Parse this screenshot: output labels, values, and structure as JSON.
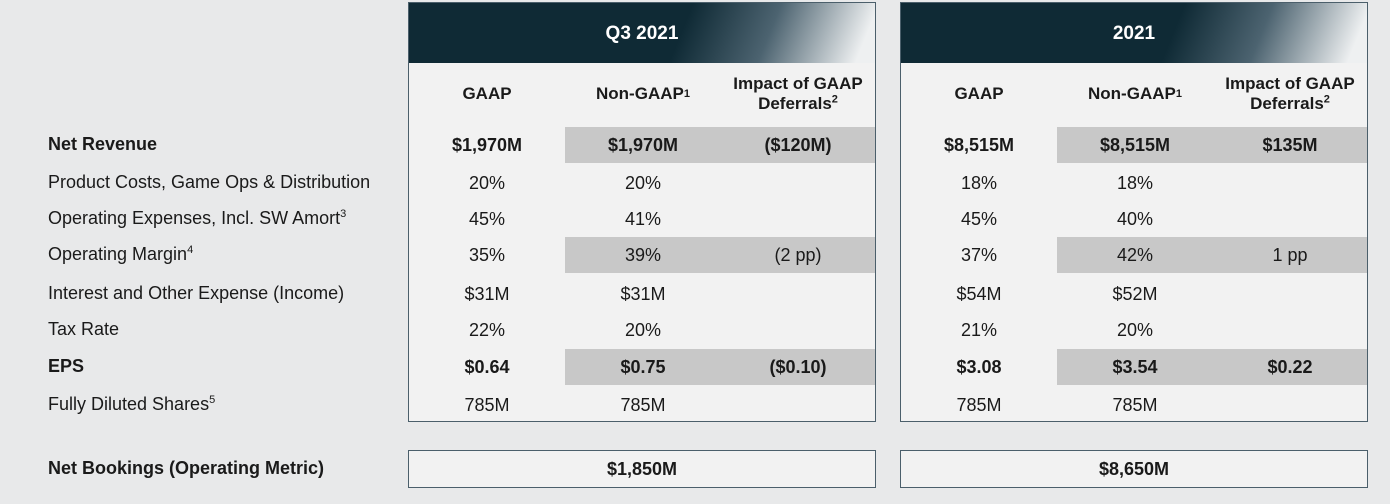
{
  "columns": {
    "gaap": "GAAP",
    "non_gaap": "Non-GAAP",
    "non_gaap_sup": "1",
    "impact_line1": "Impact of GAAP",
    "impact_line2": "Deferrals",
    "impact_sup": "2"
  },
  "rows": [
    {
      "label": "Net Revenue",
      "bold": true,
      "sup": ""
    },
    {
      "label": "Product Costs, Game Ops & Distribution",
      "bold": false,
      "sup": ""
    },
    {
      "label": "Operating Expenses, Incl. SW Amort",
      "bold": false,
      "sup": "3"
    },
    {
      "label": "Operating Margin",
      "bold": false,
      "sup": "4"
    },
    {
      "label": "Interest and Other Expense (Income)",
      "bold": false,
      "sup": ""
    },
    {
      "label": "Tax Rate",
      "bold": false,
      "sup": ""
    },
    {
      "label": "EPS",
      "bold": true,
      "sup": ""
    },
    {
      "label": "Fully Diluted Shares",
      "bold": false,
      "sup": "5"
    }
  ],
  "periods": [
    {
      "title": "Q3 2021",
      "gaap": [
        "$1,970M",
        "20%",
        "45%",
        "35%",
        "$31M",
        "22%",
        "$0.64",
        "785M"
      ],
      "non_gaap": [
        "$1,970M",
        "20%",
        "41%",
        "39%",
        "$31M",
        "20%",
        "$0.75",
        "785M"
      ],
      "impact": [
        "($120M)",
        "",
        "",
        "(2 pp)",
        "",
        "",
        "($0.10)",
        ""
      ],
      "net_bookings": "$1,850M"
    },
    {
      "title": "2021",
      "gaap": [
        "$8,515M",
        "18%",
        "45%",
        "37%",
        "$54M",
        "21%",
        "$3.08",
        "785M"
      ],
      "non_gaap": [
        "$8,515M",
        "18%",
        "40%",
        "42%",
        "$52M",
        "20%",
        "$3.54",
        "785M"
      ],
      "impact": [
        "$135M",
        "",
        "",
        "1 pp",
        "",
        "",
        "$0.22",
        ""
      ],
      "net_bookings": "$8,650M"
    }
  ],
  "net_bookings_label": "Net Bookings (Operating Metric)",
  "colors": {
    "header_bg": "#0f2a35",
    "shade": "#c8c8c8",
    "border": "#4b5f6b"
  }
}
